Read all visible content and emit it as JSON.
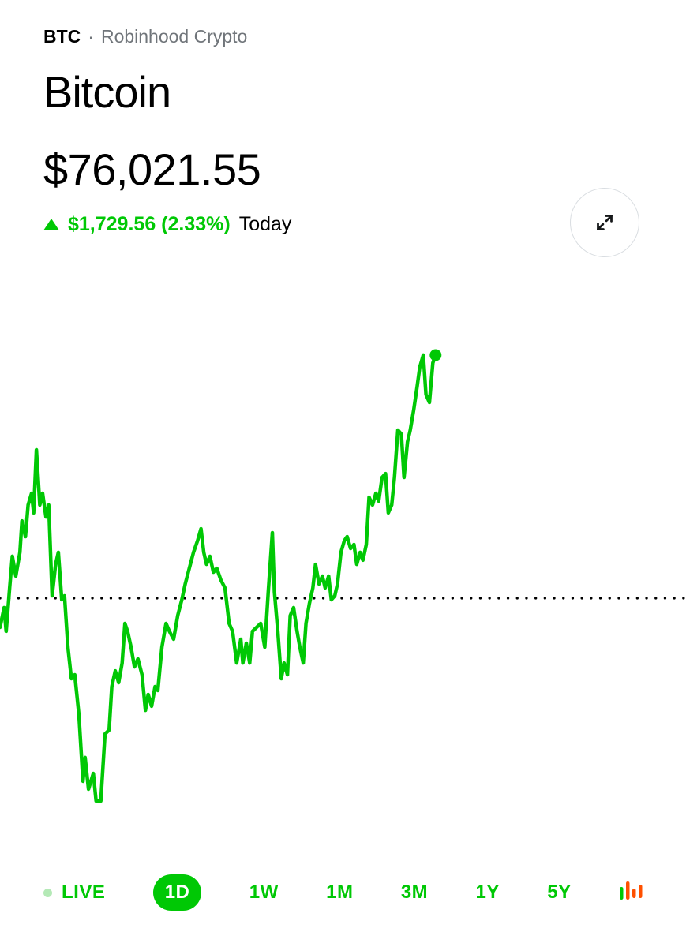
{
  "header": {
    "symbol": "BTC",
    "separator": "·",
    "exchange": "Robinhood Crypto",
    "name": "Bitcoin",
    "price": "$76,021.55",
    "change": "$1,729.56 (2.33%)",
    "change_period": "Today",
    "change_direction": "up"
  },
  "colors": {
    "accent_green": "#00C805",
    "accent_orange": "#FF5000",
    "gray_text": "#70757a",
    "live_dot": "#b4e9b6",
    "circle_border": "#d9dde1",
    "baseline": "#000000"
  },
  "toolbar": {
    "live_label": "LIVE",
    "ranges": [
      {
        "label": "1D",
        "selected": true
      },
      {
        "label": "1W",
        "selected": false
      },
      {
        "label": "1M",
        "selected": false
      },
      {
        "label": "3M",
        "selected": false
      },
      {
        "label": "1Y",
        "selected": false
      },
      {
        "label": "5Y",
        "selected": false
      }
    ],
    "chart_style_icon": {
      "name": "candlestick-chart-icon",
      "bar_colors": [
        "#00C805",
        "#FF5000",
        "#FF5000",
        "#FF5000"
      ]
    }
  },
  "chart_data": {
    "type": "line",
    "title": "Bitcoin price, 1D",
    "unit": "USD",
    "last_price": 76021.55,
    "prev_close": 74291.99,
    "change": 1729.56,
    "change_pct": 2.33,
    "price_range_shown": [
      72849,
      76022
    ],
    "line_color": "#00C805",
    "baseline_style": "dotted horizontal line at previous close, full width",
    "x_axis": "fraction of 1-day window (line ends at 0.635 = current time)",
    "grid": false,
    "legend": false,
    "points": [
      [
        0.0,
        74084
      ],
      [
        0.006,
        74225
      ],
      [
        0.009,
        74056
      ],
      [
        0.014,
        74365
      ],
      [
        0.018,
        74590
      ],
      [
        0.023,
        74449
      ],
      [
        0.029,
        74618
      ],
      [
        0.032,
        74842
      ],
      [
        0.037,
        74730
      ],
      [
        0.041,
        74955
      ],
      [
        0.046,
        75039
      ],
      [
        0.049,
        74899
      ],
      [
        0.053,
        75348
      ],
      [
        0.058,
        74955
      ],
      [
        0.062,
        75039
      ],
      [
        0.067,
        74870
      ],
      [
        0.071,
        74955
      ],
      [
        0.076,
        74309
      ],
      [
        0.081,
        74533
      ],
      [
        0.085,
        74618
      ],
      [
        0.09,
        74281
      ],
      [
        0.094,
        74309
      ],
      [
        0.099,
        73944
      ],
      [
        0.104,
        73719
      ],
      [
        0.109,
        73747
      ],
      [
        0.115,
        73466
      ],
      [
        0.121,
        72989
      ],
      [
        0.124,
        73158
      ],
      [
        0.129,
        72933
      ],
      [
        0.136,
        73045
      ],
      [
        0.14,
        72849
      ],
      [
        0.147,
        72849
      ],
      [
        0.153,
        73326
      ],
      [
        0.159,
        73354
      ],
      [
        0.163,
        73663
      ],
      [
        0.168,
        73775
      ],
      [
        0.173,
        73691
      ],
      [
        0.178,
        73831
      ],
      [
        0.182,
        74112
      ],
      [
        0.186,
        74056
      ],
      [
        0.191,
        73944
      ],
      [
        0.196,
        73803
      ],
      [
        0.201,
        73860
      ],
      [
        0.207,
        73747
      ],
      [
        0.212,
        73494
      ],
      [
        0.216,
        73607
      ],
      [
        0.221,
        73523
      ],
      [
        0.226,
        73663
      ],
      [
        0.23,
        73635
      ],
      [
        0.236,
        73944
      ],
      [
        0.242,
        74112
      ],
      [
        0.247,
        74056
      ],
      [
        0.253,
        74000
      ],
      [
        0.259,
        74168
      ],
      [
        0.265,
        74281
      ],
      [
        0.27,
        74393
      ],
      [
        0.276,
        74505
      ],
      [
        0.282,
        74618
      ],
      [
        0.288,
        74702
      ],
      [
        0.293,
        74786
      ],
      [
        0.297,
        74618
      ],
      [
        0.301,
        74533
      ],
      [
        0.306,
        74590
      ],
      [
        0.311,
        74477
      ],
      [
        0.316,
        74505
      ],
      [
        0.322,
        74421
      ],
      [
        0.328,
        74365
      ],
      [
        0.334,
        74112
      ],
      [
        0.339,
        74056
      ],
      [
        0.345,
        73831
      ],
      [
        0.351,
        74000
      ],
      [
        0.354,
        73831
      ],
      [
        0.359,
        73972
      ],
      [
        0.364,
        73831
      ],
      [
        0.368,
        74056
      ],
      [
        0.374,
        74084
      ],
      [
        0.38,
        74112
      ],
      [
        0.386,
        73944
      ],
      [
        0.391,
        74337
      ],
      [
        0.397,
        74758
      ],
      [
        0.4,
        74337
      ],
      [
        0.405,
        74056
      ],
      [
        0.41,
        73719
      ],
      [
        0.414,
        73831
      ],
      [
        0.419,
        73747
      ],
      [
        0.423,
        74168
      ],
      [
        0.428,
        74225
      ],
      [
        0.433,
        74056
      ],
      [
        0.437,
        73944
      ],
      [
        0.442,
        73831
      ],
      [
        0.446,
        74112
      ],
      [
        0.451,
        74253
      ],
      [
        0.456,
        74365
      ],
      [
        0.46,
        74533
      ],
      [
        0.465,
        74393
      ],
      [
        0.47,
        74449
      ],
      [
        0.474,
        74365
      ],
      [
        0.479,
        74449
      ],
      [
        0.483,
        74281
      ],
      [
        0.488,
        74309
      ],
      [
        0.492,
        74393
      ],
      [
        0.497,
        74618
      ],
      [
        0.502,
        74702
      ],
      [
        0.506,
        74730
      ],
      [
        0.511,
        74646
      ],
      [
        0.516,
        74674
      ],
      [
        0.52,
        74533
      ],
      [
        0.525,
        74618
      ],
      [
        0.529,
        74562
      ],
      [
        0.534,
        74674
      ],
      [
        0.538,
        75011
      ],
      [
        0.543,
        74955
      ],
      [
        0.548,
        75039
      ],
      [
        0.552,
        74983
      ],
      [
        0.557,
        75151
      ],
      [
        0.562,
        75179
      ],
      [
        0.566,
        74899
      ],
      [
        0.571,
        74955
      ],
      [
        0.575,
        75151
      ],
      [
        0.58,
        75488
      ],
      [
        0.585,
        75460
      ],
      [
        0.589,
        75151
      ],
      [
        0.594,
        75404
      ],
      [
        0.598,
        75488
      ],
      [
        0.603,
        75629
      ],
      [
        0.608,
        75797
      ],
      [
        0.612,
        75937
      ],
      [
        0.617,
        76022
      ],
      [
        0.621,
        75741
      ],
      [
        0.626,
        75685
      ],
      [
        0.631,
        75966
      ],
      [
        0.635,
        76021.55
      ]
    ]
  }
}
